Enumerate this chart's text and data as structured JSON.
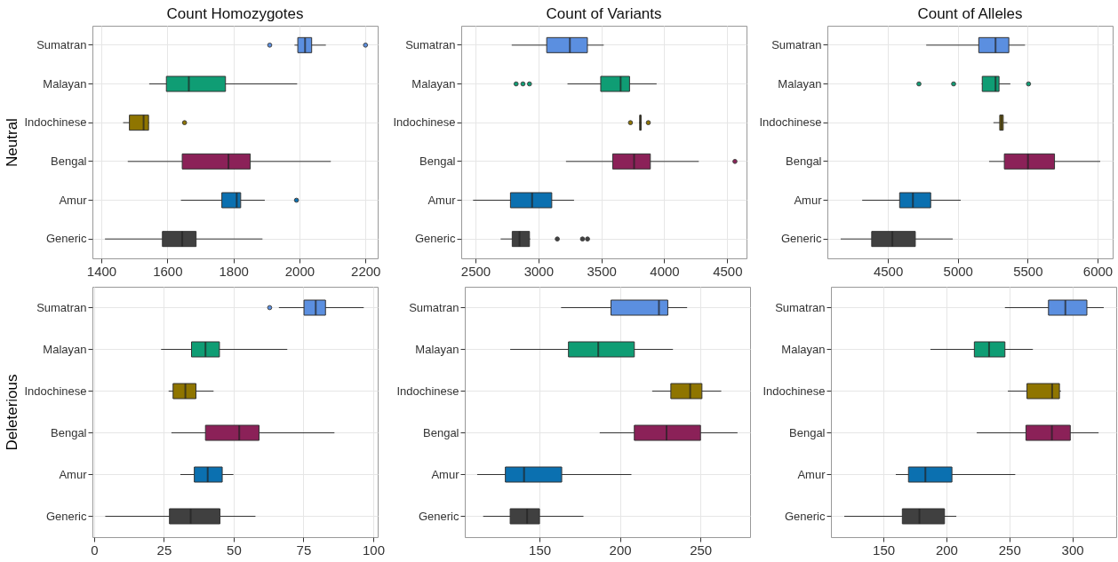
{
  "chart_data": [
    {
      "type": "box",
      "orientation": "horizontal",
      "title": "Count Homozygotes",
      "ylabel": "Neutral",
      "grid": true,
      "categories": [
        "Sumatran",
        "Malayan",
        "Indochinese",
        "Bengal",
        "Amur",
        "Generic"
      ],
      "colors": [
        "#5b8fe0",
        "#0f9d74",
        "#8f7500",
        "#8b2158",
        "#0b70b0",
        "#404040"
      ],
      "xlim": [
        1373,
        2237
      ],
      "xticks": [
        1400,
        1600,
        1800,
        2000,
        2200
      ],
      "boxes": [
        {
          "low": 1985,
          "q1": 1995,
          "median": 2017,
          "q3": 2037,
          "high": 2080,
          "outliers": [
            1910,
            2200
          ]
        },
        {
          "low": 1545,
          "q1": 1597,
          "median": 1665,
          "q3": 1776,
          "high": 1993
        },
        {
          "low": 1466,
          "q1": 1485,
          "median": 1528,
          "q3": 1543,
          "high": 1545,
          "outliers": [
            1652
          ]
        },
        {
          "low": 1480,
          "q1": 1645,
          "median": 1785,
          "q3": 1851,
          "high": 2095
        },
        {
          "low": 1641,
          "q1": 1765,
          "median": 1810,
          "q3": 1822,
          "high": 1895,
          "outliers": [
            1991
          ]
        },
        {
          "low": 1411,
          "q1": 1585,
          "median": 1645,
          "q3": 1687,
          "high": 1888
        }
      ]
    },
    {
      "type": "box",
      "orientation": "horizontal",
      "title": "Count of Variants",
      "grid": true,
      "categories": [
        "Sumatran",
        "Malayan",
        "Indochinese",
        "Bengal",
        "Amur",
        "Generic"
      ],
      "colors": [
        "#5b8fe0",
        "#0f9d74",
        "#8f7500",
        "#8b2158",
        "#0b70b0",
        "#404040"
      ],
      "xlim": [
        2387,
        4653
      ],
      "xticks": [
        2500,
        3000,
        3500,
        4000,
        4500
      ],
      "boxes": [
        {
          "low": 2788,
          "q1": 3066,
          "median": 3250,
          "q3": 3389,
          "high": 3519
        },
        {
          "low": 3231,
          "q1": 3495,
          "median": 3653,
          "q3": 3724,
          "high": 3939,
          "outliers": [
            2823,
            2877,
            2929
          ]
        },
        {
          "low": 3800,
          "q1": 3805,
          "median": 3810,
          "q3": 3815,
          "high": 3820,
          "outliers": [
            3731,
            3873
          ]
        },
        {
          "low": 3219,
          "q1": 3590,
          "median": 3760,
          "q3": 3889,
          "high": 4274,
          "outliers": [
            4561
          ]
        },
        {
          "low": 2481,
          "q1": 2778,
          "median": 2950,
          "q3": 3106,
          "high": 3283
        },
        {
          "low": 2700,
          "q1": 2792,
          "median": 2850,
          "q3": 2929,
          "high": 2935,
          "outliers": [
            3150,
            3350,
            3390
          ]
        }
      ]
    },
    {
      "type": "box",
      "orientation": "horizontal",
      "title": "Count of Alleles",
      "grid": true,
      "categories": [
        "Sumatran",
        "Malayan",
        "Indochinese",
        "Bengal",
        "Amur",
        "Generic"
      ],
      "colors": [
        "#5b8fe0",
        "#0f9d74",
        "#8f7500",
        "#8b2158",
        "#0b70b0",
        "#404040"
      ],
      "xlim": [
        4067,
        6108
      ],
      "xticks": [
        4500,
        5000,
        5500,
        6000
      ],
      "boxes": [
        {
          "low": 4774,
          "q1": 5150,
          "median": 5270,
          "q3": 5365,
          "high": 5481
        },
        {
          "low": 5171,
          "q1": 5175,
          "median": 5270,
          "q3": 5295,
          "high": 5376,
          "outliers": [
            4722,
            4970,
            5506
          ]
        },
        {
          "low": 5255,
          "q1": 5300,
          "median": 5312,
          "q3": 5325,
          "high": 5354
        },
        {
          "low": 5224,
          "q1": 5333,
          "median": 5502,
          "q3": 5692,
          "high": 6019
        },
        {
          "low": 4316,
          "q1": 4584,
          "median": 4679,
          "q3": 4806,
          "high": 5021
        },
        {
          "low": 4162,
          "q1": 4384,
          "median": 4532,
          "q3": 4696,
          "high": 4964
        }
      ]
    },
    {
      "type": "box",
      "orientation": "horizontal",
      "ylabel": "Deleterious",
      "grid": true,
      "categories": [
        "Sumatran",
        "Malayan",
        "Indochinese",
        "Bengal",
        "Amur",
        "Generic"
      ],
      "colors": [
        "#5b8fe0",
        "#0f9d74",
        "#8f7500",
        "#8b2158",
        "#0b70b0",
        "#404040"
      ],
      "xlim": [
        -0.6,
        101.6
      ],
      "xticks": [
        0,
        25,
        50,
        75,
        100
      ],
      "boxes": [
        {
          "low": 66.2,
          "q1": 75.2,
          "median": 79.4,
          "q3": 82.9,
          "high": 96.6,
          "outliers": [
            62.9
          ]
        },
        {
          "low": 24,
          "q1": 34.9,
          "median": 39.9,
          "q3": 44.9,
          "high": 69.2
        },
        {
          "low": 26.7,
          "q1": 28.3,
          "median": 32.7,
          "q3": 36.5,
          "high": 42.8
        },
        {
          "low": 27.7,
          "q1": 39.9,
          "median": 52,
          "q3": 59.1,
          "high": 86.1
        },
        {
          "low": 30.9,
          "q1": 35.9,
          "median": 40.7,
          "q3": 45.9,
          "high": 49.9
        },
        {
          "low": 4,
          "q1": 27,
          "median": 34.6,
          "q3": 45.1,
          "high": 57.8
        }
      ]
    },
    {
      "type": "box",
      "orientation": "horizontal",
      "grid": true,
      "categories": [
        "Sumatran",
        "Malayan",
        "Indochinese",
        "Bengal",
        "Amur",
        "Generic"
      ],
      "colors": [
        "#5b8fe0",
        "#0f9d74",
        "#8f7500",
        "#8b2158",
        "#0b70b0",
        "#404040"
      ],
      "xlim": [
        103.6,
        280.8
      ],
      "xticks": [
        150,
        200,
        250
      ],
      "boxes": [
        {
          "low": 163.4,
          "q1": 194.4,
          "median": 224.2,
          "q3": 229.7,
          "high": 241.7
        },
        {
          "low": 131.8,
          "q1": 168,
          "median": 186.5,
          "q3": 208.9,
          "high": 232.9
        },
        {
          "low": 220,
          "q1": 231.6,
          "median": 243.6,
          "q3": 250.9,
          "high": 262.9
        },
        {
          "low": 187.4,
          "q1": 208.9,
          "median": 228.9,
          "q3": 250,
          "high": 273
        },
        {
          "low": 111.3,
          "q1": 128.8,
          "median": 140.4,
          "q3": 163.8,
          "high": 207.1
        },
        {
          "low": 115,
          "q1": 131.8,
          "median": 142.3,
          "q3": 150,
          "high": 177.3
        }
      ]
    },
    {
      "type": "box",
      "orientation": "horizontal",
      "grid": true,
      "categories": [
        "Sumatran",
        "Malayan",
        "Indochinese",
        "Bengal",
        "Amur",
        "Generic"
      ],
      "colors": [
        "#5b8fe0",
        "#0f9d74",
        "#8f7500",
        "#8b2158",
        "#0b70b0",
        "#404040"
      ],
      "xlim": [
        108.3,
        334.9
      ],
      "xticks": [
        150,
        200,
        250,
        300
      ],
      "boxes": [
        {
          "low": 246.5,
          "q1": 281.1,
          "median": 294.5,
          "q3": 311.6,
          "high": 325
        },
        {
          "low": 187.3,
          "q1": 222.2,
          "median": 233.9,
          "q3": 246.5,
          "high": 268.7
        },
        {
          "low": 248.8,
          "q1": 264,
          "median": 284,
          "q3": 289.8,
          "high": 291
        },
        {
          "low": 224.1,
          "q1": 263.2,
          "median": 283.8,
          "q3": 298.4,
          "high": 320.9
        },
        {
          "low": 159.8,
          "q1": 169.9,
          "median": 183.3,
          "q3": 204.4,
          "high": 254.7
        },
        {
          "low": 118.9,
          "q1": 165,
          "median": 178.6,
          "q3": 198.5,
          "high": 207.9
        }
      ]
    }
  ]
}
